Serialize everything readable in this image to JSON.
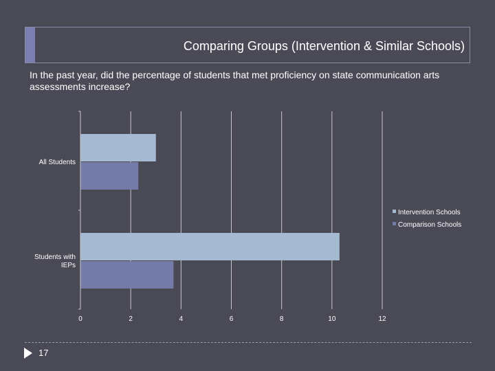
{
  "slide": {
    "title": "Comparing Groups (Intervention & Similar Schools)",
    "question": "In the past year, did the percentage of students that met proficiency on state communication arts assessments increase?",
    "page_number": "17"
  },
  "colors": {
    "background": "#4a4a56",
    "intervention": "#a5b9d0",
    "comparison": "#737ba6",
    "gridline": "#c8c8c8"
  },
  "chart_data": {
    "type": "bar",
    "orientation": "horizontal",
    "categories": [
      "All Students",
      "Students with IEPs"
    ],
    "series": [
      {
        "name": "Intervention Schools",
        "values": [
          3.0,
          10.3
        ]
      },
      {
        "name": "Comparison Schools",
        "values": [
          2.3,
          3.7
        ]
      }
    ],
    "xlim": [
      0,
      12
    ],
    "xticks": [
      "0",
      "2",
      "4",
      "6",
      "8",
      "10",
      "12"
    ],
    "grid": true,
    "legend_position": "right"
  }
}
